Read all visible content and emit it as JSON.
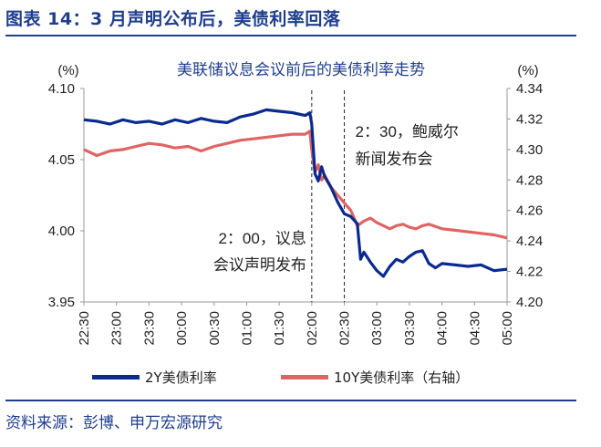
{
  "heading": "图表 14：3 月声明公布后，美债利率回落",
  "source": "资料来源：彭博、申万宏源研究",
  "colors": {
    "brand": "#1f3e8c",
    "y2": "#0b2a8f",
    "y10": "#e06464"
  },
  "chart_data": {
    "type": "line",
    "title": "美联储议息会议前后的美债利率走势",
    "ylabel_left": "(%)",
    "ylabel_right": "(%)",
    "ylim_left": [
      3.95,
      4.1
    ],
    "ylim_right": [
      4.2,
      4.34
    ],
    "yticks_left": [
      "4.10",
      "4.05",
      "4.00",
      "3.95"
    ],
    "yticks_right": [
      "4.34",
      "4.32",
      "4.30",
      "4.28",
      "4.26",
      "4.24",
      "4.22",
      "4.20"
    ],
    "x_range_hours": [
      22.5,
      29.0
    ],
    "xticks": [
      "22:30",
      "23:00",
      "23:30",
      "00:00",
      "00:30",
      "01:00",
      "01:30",
      "02:00",
      "02:30",
      "03:00",
      "03:30",
      "04:00",
      "04:30",
      "05:00"
    ],
    "legend_position": "bottom",
    "annotations": [
      {
        "lines": [
          "2：00，议息",
          "会议声明发布"
        ],
        "x": 26.0
      },
      {
        "lines": [
          "2：30，鲍威尔",
          "新闻发布会"
        ],
        "x": 26.5
      }
    ],
    "series": [
      {
        "name": "2Y美债利率",
        "axis": "left",
        "x": [
          22.5,
          22.7,
          22.9,
          23.1,
          23.3,
          23.5,
          23.7,
          23.9,
          24.1,
          24.3,
          24.5,
          24.7,
          24.9,
          25.1,
          25.3,
          25.5,
          25.7,
          25.9,
          25.97,
          26.0,
          26.05,
          26.1,
          26.15,
          26.2,
          26.3,
          26.4,
          26.5,
          26.6,
          26.7,
          26.75,
          26.8,
          26.9,
          27.0,
          27.1,
          27.2,
          27.3,
          27.4,
          27.5,
          27.6,
          27.7,
          27.8,
          27.9,
          28.0,
          28.2,
          28.4,
          28.6,
          28.8,
          29.0
        ],
        "values": [
          4.078,
          4.077,
          4.075,
          4.078,
          4.076,
          4.077,
          4.075,
          4.078,
          4.076,
          4.079,
          4.077,
          4.076,
          4.08,
          4.082,
          4.085,
          4.084,
          4.083,
          4.081,
          4.083,
          4.075,
          4.04,
          4.035,
          4.045,
          4.038,
          4.03,
          4.02,
          4.012,
          4.01,
          4.005,
          3.98,
          3.985,
          3.978,
          3.972,
          3.968,
          3.975,
          3.98,
          3.978,
          3.982,
          3.985,
          3.986,
          3.977,
          3.974,
          3.977,
          3.976,
          3.975,
          3.976,
          3.972,
          3.973
        ]
      },
      {
        "name": "10Y美债利率（右轴）",
        "axis": "right",
        "x": [
          22.5,
          22.7,
          22.9,
          23.1,
          23.3,
          23.5,
          23.7,
          23.9,
          24.1,
          24.3,
          24.5,
          24.7,
          24.9,
          25.1,
          25.3,
          25.5,
          25.7,
          25.9,
          25.97,
          26.0,
          26.05,
          26.1,
          26.15,
          26.2,
          26.3,
          26.4,
          26.5,
          26.6,
          26.7,
          26.8,
          26.9,
          27.0,
          27.1,
          27.2,
          27.3,
          27.4,
          27.5,
          27.6,
          27.7,
          27.8,
          28.0,
          28.2,
          28.4,
          28.6,
          28.8,
          29.0
        ],
        "values": [
          4.3,
          4.296,
          4.299,
          4.3,
          4.302,
          4.304,
          4.303,
          4.301,
          4.302,
          4.299,
          4.302,
          4.304,
          4.306,
          4.307,
          4.308,
          4.309,
          4.31,
          4.31,
          4.312,
          4.3,
          4.285,
          4.29,
          4.28,
          4.283,
          4.275,
          4.27,
          4.265,
          4.26,
          4.25,
          4.253,
          4.255,
          4.252,
          4.25,
          4.248,
          4.25,
          4.251,
          4.249,
          4.248,
          4.25,
          4.251,
          4.248,
          4.247,
          4.246,
          4.245,
          4.244,
          4.242
        ]
      }
    ]
  }
}
